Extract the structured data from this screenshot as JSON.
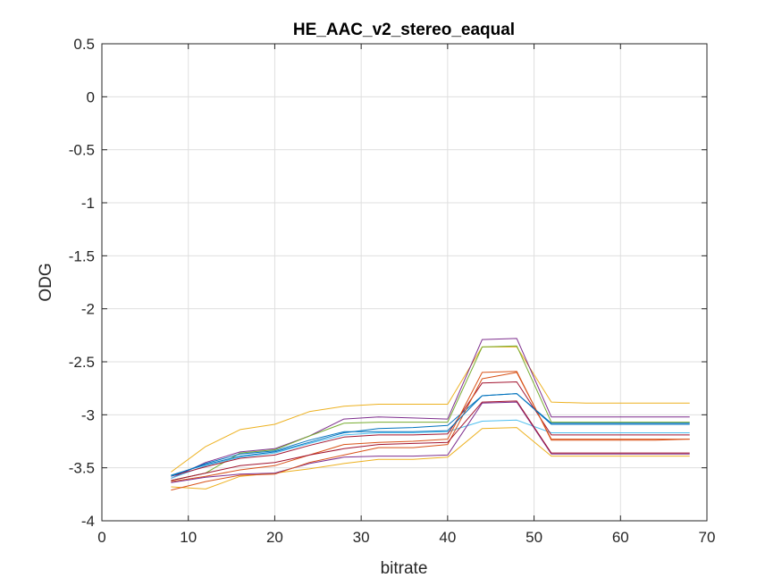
{
  "chart_data": {
    "type": "line",
    "title": "HE_AAC_v2_stereo_eaqual",
    "xlabel": "bitrate",
    "ylabel": "ODG",
    "xlim": [
      0,
      70
    ],
    "ylim": [
      -4,
      0.5
    ],
    "xticks": [
      0,
      10,
      20,
      30,
      40,
      50,
      60,
      70
    ],
    "xtick_labels": [
      "0",
      "10",
      "20",
      "30",
      "40",
      "50",
      "60",
      "70"
    ],
    "yticks": [
      0.5,
      0,
      -0.5,
      -1,
      -1.5,
      -2,
      -2.5,
      -3,
      -3.5,
      -4
    ],
    "ytick_labels": [
      "0.5",
      "0",
      "-0.5",
      "-1",
      "-1.5",
      "-2",
      "-2.5",
      "-3",
      "-3.5",
      "-4"
    ],
    "grid": true,
    "x": [
      8,
      12,
      16,
      20,
      24,
      28,
      32,
      36,
      40,
      44,
      48,
      52,
      56,
      60,
      64,
      68
    ],
    "series": [
      {
        "color": "#EDB120",
        "values": [
          -3.54,
          -3.3,
          -3.14,
          -3.09,
          -2.97,
          -2.92,
          -2.9,
          -2.9,
          -2.9,
          -2.36,
          -2.36,
          -2.88,
          -2.89,
          -2.89,
          -2.89,
          -2.89
        ]
      },
      {
        "color": "#7E2F8E",
        "values": [
          -3.6,
          -3.45,
          -3.35,
          -3.32,
          -3.2,
          -3.04,
          -3.02,
          -3.03,
          -3.04,
          -2.29,
          -2.28,
          -3.02,
          -3.02,
          -3.02,
          -3.02,
          -3.02
        ]
      },
      {
        "color": "#77AC30",
        "values": [
          -3.62,
          -3.55,
          -3.36,
          -3.33,
          -3.2,
          -3.08,
          -3.07,
          -3.07,
          -3.07,
          -2.36,
          -2.35,
          -3.07,
          -3.07,
          -3.07,
          -3.07,
          -3.07
        ]
      },
      {
        "color": "#0072BD",
        "values": [
          -3.57,
          -3.47,
          -3.39,
          -3.35,
          -3.26,
          -3.17,
          -3.13,
          -3.12,
          -3.1,
          -2.82,
          -2.8,
          -3.08,
          -3.08,
          -3.08,
          -3.08,
          -3.08
        ]
      },
      {
        "color": "#4DBEEE",
        "values": [
          -3.6,
          -3.48,
          -3.4,
          -3.36,
          -3.27,
          -3.19,
          -3.17,
          -3.17,
          -3.16,
          -3.06,
          -3.05,
          -3.17,
          -3.17,
          -3.17,
          -3.17,
          -3.17
        ]
      },
      {
        "color": "#A2142F",
        "values": [
          -3.58,
          -3.49,
          -3.41,
          -3.38,
          -3.29,
          -3.21,
          -3.19,
          -3.19,
          -3.18,
          -2.7,
          -2.69,
          -3.19,
          -3.19,
          -3.19,
          -3.19,
          -3.19
        ]
      },
      {
        "color": "#D95319",
        "values": [
          -3.63,
          -3.58,
          -3.52,
          -3.48,
          -3.38,
          -3.28,
          -3.26,
          -3.25,
          -3.23,
          -2.6,
          -2.59,
          -3.24,
          -3.24,
          -3.24,
          -3.24,
          -3.23
        ]
      },
      {
        "color": "#EDB120",
        "values": [
          -3.68,
          -3.7,
          -3.58,
          -3.55,
          -3.51,
          -3.46,
          -3.42,
          -3.42,
          -3.4,
          -3.13,
          -3.12,
          -3.39,
          -3.39,
          -3.39,
          -3.39,
          -3.39
        ]
      },
      {
        "color": "#7E2F8E",
        "values": [
          -3.64,
          -3.59,
          -3.56,
          -3.55,
          -3.46,
          -3.4,
          -3.39,
          -3.39,
          -3.38,
          -2.89,
          -2.88,
          -3.37,
          -3.37,
          -3.37,
          -3.37,
          -3.37
        ]
      },
      {
        "color": "#D95319",
        "values": [
          -3.71,
          -3.63,
          -3.57,
          -3.56,
          -3.45,
          -3.38,
          -3.31,
          -3.31,
          -3.28,
          -2.66,
          -2.6,
          -3.23,
          -3.23,
          -3.23,
          -3.23,
          -3.23
        ]
      },
      {
        "color": "#0072BD",
        "values": [
          -3.58,
          -3.46,
          -3.37,
          -3.34,
          -3.24,
          -3.16,
          -3.16,
          -3.16,
          -3.15,
          -2.82,
          -2.8,
          -3.09,
          -3.09,
          -3.09,
          -3.09,
          -3.09
        ]
      },
      {
        "color": "#A2142F",
        "values": [
          -3.62,
          -3.55,
          -3.48,
          -3.45,
          -3.38,
          -3.32,
          -3.28,
          -3.27,
          -3.26,
          -2.88,
          -2.87,
          -3.36,
          -3.36,
          -3.36,
          -3.36,
          -3.36
        ]
      }
    ]
  }
}
